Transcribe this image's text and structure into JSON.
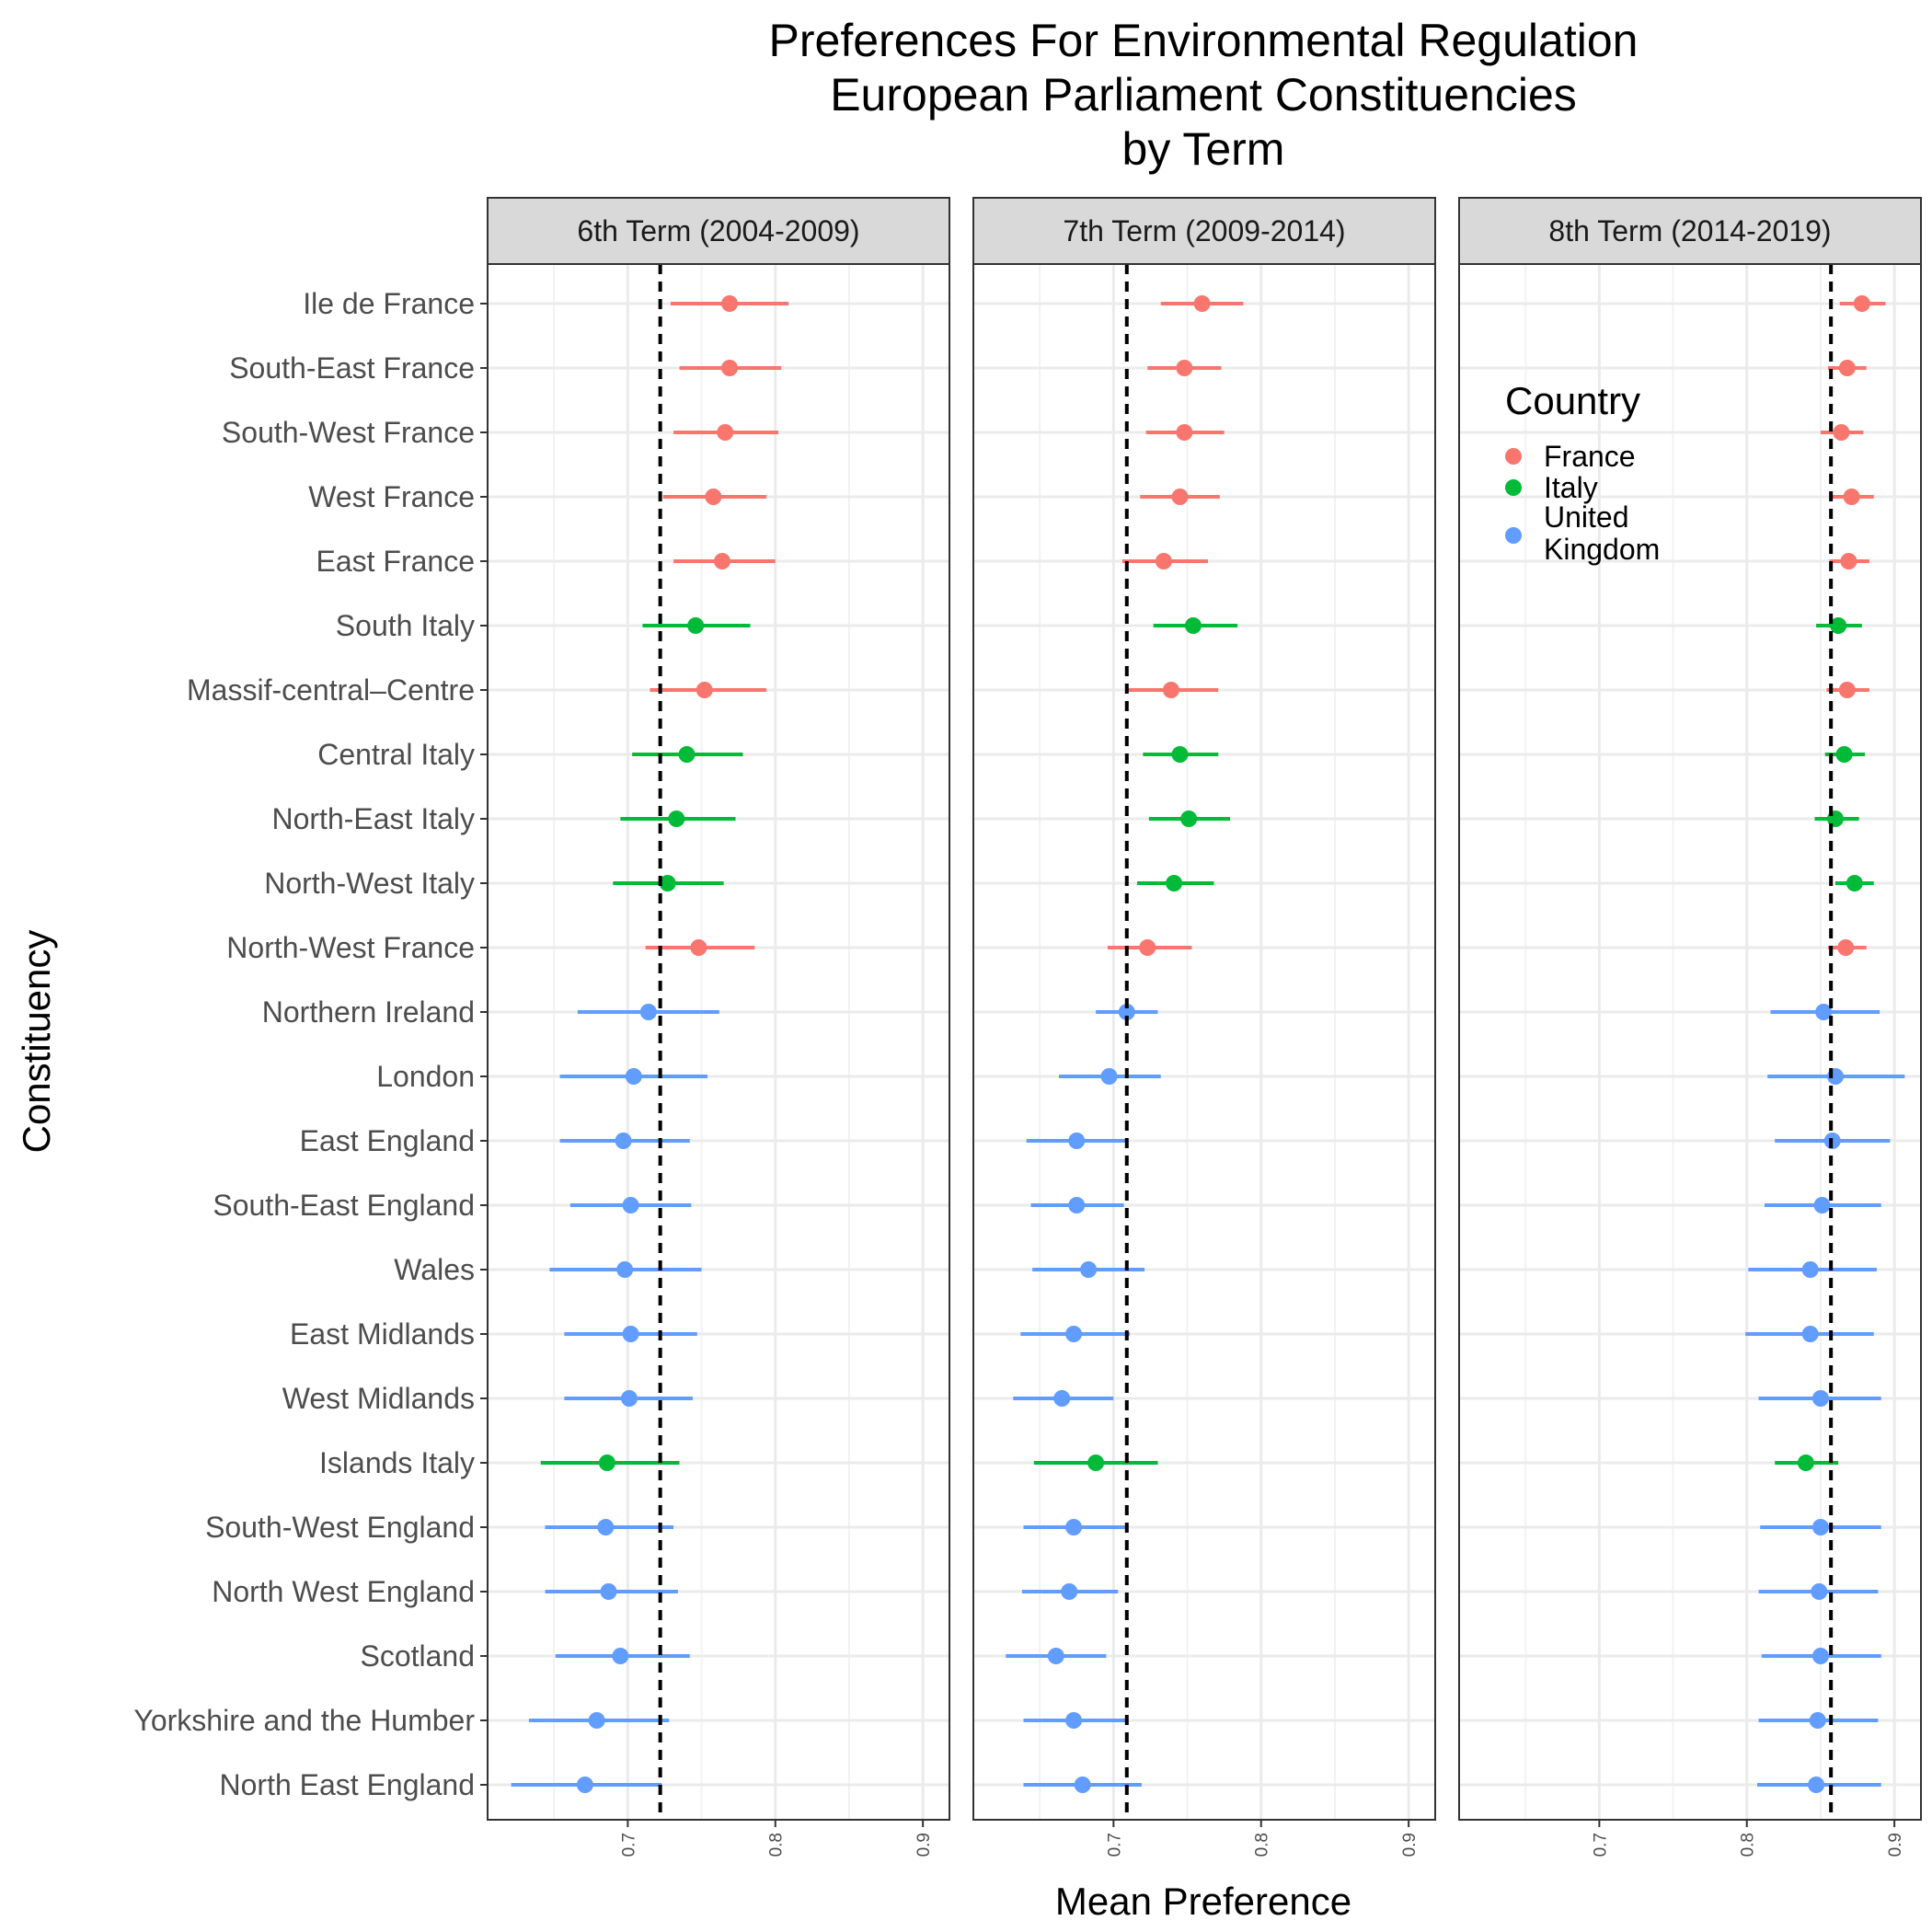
{
  "chart_data": {
    "type": "scatter",
    "title_lines": [
      "Preferences For Environmental Regulation",
      "European Parliament Constituencies",
      "by Term"
    ],
    "xlabel": "Mean Preference",
    "ylabel": "Constituency",
    "xlim": [
      0.605,
      0.918
    ],
    "xticks": [
      0.7,
      0.8,
      0.9
    ],
    "xtick_labels": [
      "0.7",
      "0.8",
      "0.9"
    ],
    "grid": true,
    "legend_title": "Country",
    "legend_position": "inside top-right of third panel",
    "legend_labels": {
      "France": [
        "France"
      ],
      "Italy": [
        "Italy"
      ],
      "United Kingdom": [
        "United",
        "Kingdom"
      ]
    },
    "colors": {
      "France": "#F8766D",
      "Italy": "#00BA38",
      "United Kingdom": "#619CFF"
    },
    "constituencies": [
      {
        "name": "Ile de France",
        "country": "France"
      },
      {
        "name": "South-East France",
        "country": "France"
      },
      {
        "name": "South-West France",
        "country": "France"
      },
      {
        "name": "West France",
        "country": "France"
      },
      {
        "name": "East France",
        "country": "France"
      },
      {
        "name": "South Italy",
        "country": "Italy"
      },
      {
        "name": "Massif-central–Centre",
        "country": "France"
      },
      {
        "name": "Central Italy",
        "country": "Italy"
      },
      {
        "name": "North-East Italy",
        "country": "Italy"
      },
      {
        "name": "North-West Italy",
        "country": "Italy"
      },
      {
        "name": "North-West France",
        "country": "France"
      },
      {
        "name": "Northern Ireland",
        "country": "United Kingdom"
      },
      {
        "name": "London",
        "country": "United Kingdom"
      },
      {
        "name": "East England",
        "country": "United Kingdom"
      },
      {
        "name": "South-East England",
        "country": "United Kingdom"
      },
      {
        "name": "Wales",
        "country": "United Kingdom"
      },
      {
        "name": "East Midlands",
        "country": "United Kingdom"
      },
      {
        "name": "West Midlands",
        "country": "United Kingdom"
      },
      {
        "name": "Islands Italy",
        "country": "Italy"
      },
      {
        "name": "South-West England",
        "country": "United Kingdom"
      },
      {
        "name": "North West England",
        "country": "United Kingdom"
      },
      {
        "name": "Scotland",
        "country": "United Kingdom"
      },
      {
        "name": "Yorkshire and the Humber",
        "country": "United Kingdom"
      },
      {
        "name": "North East England",
        "country": "United Kingdom"
      }
    ],
    "panels": [
      {
        "label": "6th Term (2004-2009)",
        "mean_line": 0.722,
        "points": [
          [
            0.769,
            0.729,
            0.809
          ],
          [
            0.769,
            0.735,
            0.804
          ],
          [
            0.766,
            0.731,
            0.802
          ],
          [
            0.758,
            0.724,
            0.794
          ],
          [
            0.764,
            0.731,
            0.8
          ],
          [
            0.746,
            0.71,
            0.783
          ],
          [
            0.752,
            0.715,
            0.794
          ],
          [
            0.74,
            0.703,
            0.778
          ],
          [
            0.733,
            0.695,
            0.773
          ],
          [
            0.727,
            0.69,
            0.765
          ],
          [
            0.748,
            0.712,
            0.786
          ],
          [
            0.714,
            0.666,
            0.762
          ],
          [
            0.704,
            0.654,
            0.754
          ],
          [
            0.697,
            0.654,
            0.742
          ],
          [
            0.702,
            0.661,
            0.743
          ],
          [
            0.698,
            0.647,
            0.75
          ],
          [
            0.702,
            0.657,
            0.747
          ],
          [
            0.701,
            0.657,
            0.744
          ],
          [
            0.686,
            0.641,
            0.735
          ],
          [
            0.685,
            0.644,
            0.731
          ],
          [
            0.687,
            0.644,
            0.734
          ],
          [
            0.695,
            0.651,
            0.742
          ],
          [
            0.679,
            0.633,
            0.728
          ],
          [
            0.671,
            0.621,
            0.723
          ]
        ]
      },
      {
        "label": "7th Term (2009-2014)",
        "mean_line": 0.709,
        "points": [
          [
            0.76,
            0.732,
            0.788
          ],
          [
            0.748,
            0.723,
            0.773
          ],
          [
            0.748,
            0.722,
            0.775
          ],
          [
            0.745,
            0.718,
            0.772
          ],
          [
            0.734,
            0.706,
            0.764
          ],
          [
            0.754,
            0.727,
            0.784
          ],
          [
            0.739,
            0.709,
            0.771
          ],
          [
            0.745,
            0.72,
            0.771
          ],
          [
            0.751,
            0.724,
            0.779
          ],
          [
            0.741,
            0.716,
            0.768
          ],
          [
            0.723,
            0.696,
            0.753
          ],
          [
            0.709,
            0.688,
            0.73
          ],
          [
            0.697,
            0.663,
            0.732
          ],
          [
            0.675,
            0.641,
            0.71
          ],
          [
            0.675,
            0.644,
            0.707
          ],
          [
            0.683,
            0.645,
            0.721
          ],
          [
            0.673,
            0.637,
            0.711
          ],
          [
            0.665,
            0.632,
            0.7
          ],
          [
            0.688,
            0.646,
            0.73
          ],
          [
            0.673,
            0.639,
            0.708
          ],
          [
            0.67,
            0.638,
            0.703
          ],
          [
            0.661,
            0.627,
            0.695
          ],
          [
            0.673,
            0.639,
            0.708
          ],
          [
            0.679,
            0.639,
            0.719
          ]
        ]
      },
      {
        "label": "8th Term (2014-2019)",
        "mean_line": 0.857,
        "points": [
          [
            0.878,
            0.863,
            0.894
          ],
          [
            0.868,
            0.855,
            0.881
          ],
          [
            0.864,
            0.85,
            0.879
          ],
          [
            0.871,
            0.857,
            0.886
          ],
          [
            0.869,
            0.856,
            0.883
          ],
          [
            0.862,
            0.847,
            0.878
          ],
          [
            0.868,
            0.854,
            0.883
          ],
          [
            0.866,
            0.853,
            0.88
          ],
          [
            0.86,
            0.846,
            0.876
          ],
          [
            0.873,
            0.86,
            0.886
          ],
          [
            0.867,
            0.855,
            0.881
          ],
          [
            0.852,
            0.816,
            0.89
          ],
          [
            0.86,
            0.814,
            0.907
          ],
          [
            0.858,
            0.819,
            0.897
          ],
          [
            0.851,
            0.812,
            0.891
          ],
          [
            0.843,
            0.801,
            0.888
          ],
          [
            0.843,
            0.799,
            0.886
          ],
          [
            0.85,
            0.808,
            0.891
          ],
          [
            0.84,
            0.819,
            0.862
          ],
          [
            0.85,
            0.809,
            0.891
          ],
          [
            0.849,
            0.808,
            0.889
          ],
          [
            0.85,
            0.81,
            0.891
          ],
          [
            0.848,
            0.808,
            0.889
          ],
          [
            0.847,
            0.807,
            0.891
          ]
        ]
      }
    ]
  }
}
